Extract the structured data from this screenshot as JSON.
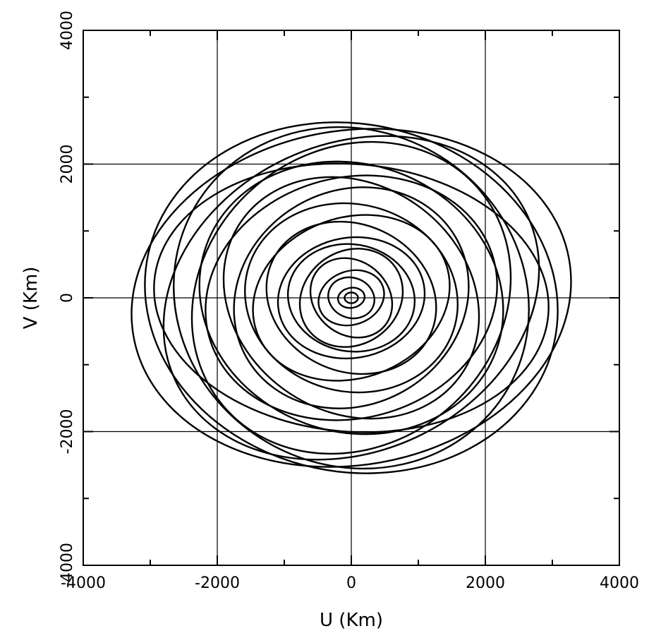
{
  "chart_data": {
    "type": "scatter",
    "xlabel": "U (Km)",
    "ylabel": "V (Km)",
    "xlim": [
      -4000,
      4000
    ],
    "ylim": [
      -4000,
      4000
    ],
    "x_ticks": [
      -4000,
      -2000,
      0,
      2000,
      4000
    ],
    "y_ticks": [
      -4000,
      -2000,
      0,
      2000,
      4000
    ],
    "x_tick_labels": [
      "-4000",
      "-2000",
      "0",
      "2000",
      "4000"
    ],
    "y_tick_labels": [
      "-4000",
      "-2000",
      "0",
      "2000",
      "4000"
    ],
    "grid": true,
    "colors": {
      "line": "#000000",
      "background": "#ffffff"
    },
    "series": [
      {
        "values": [
          {
            "a": 3300,
            "b": 2500,
            "tilt": 10
          },
          {
            "a": 3100,
            "b": 2600,
            "tilt": -12
          },
          {
            "a": 2900,
            "b": 2300,
            "tilt": 25
          },
          {
            "a": 2700,
            "b": 2500,
            "tilt": -30
          },
          {
            "a": 2950,
            "b": 2000,
            "tilt": -5
          },
          {
            "a": 2500,
            "b": 2200,
            "tilt": 40
          },
          {
            "a": 2300,
            "b": 2000,
            "tilt": -20
          },
          {
            "a": 2200,
            "b": 1800,
            "tilt": 15
          },
          {
            "a": 2000,
            "b": 1700,
            "tilt": -35
          },
          {
            "a": 1800,
            "b": 1600,
            "tilt": 30
          },
          {
            "a": 1600,
            "b": 1400,
            "tilt": -15
          },
          {
            "a": 1500,
            "b": 1200,
            "tilt": 20
          },
          {
            "a": 1300,
            "b": 1100,
            "tilt": -25
          },
          {
            "a": 1100,
            "b": 900,
            "tilt": 10
          },
          {
            "a": 950,
            "b": 800,
            "tilt": -10
          },
          {
            "a": 800,
            "b": 700,
            "tilt": 35
          },
          {
            "a": 650,
            "b": 550,
            "tilt": -40
          },
          {
            "a": 500,
            "b": 400,
            "tilt": 20
          },
          {
            "a": 350,
            "b": 300,
            "tilt": -20
          },
          {
            "a": 200,
            "b": 150,
            "tilt": 10
          },
          {
            "a": 100,
            "b": 80,
            "tilt": 0
          }
        ]
      }
    ]
  }
}
